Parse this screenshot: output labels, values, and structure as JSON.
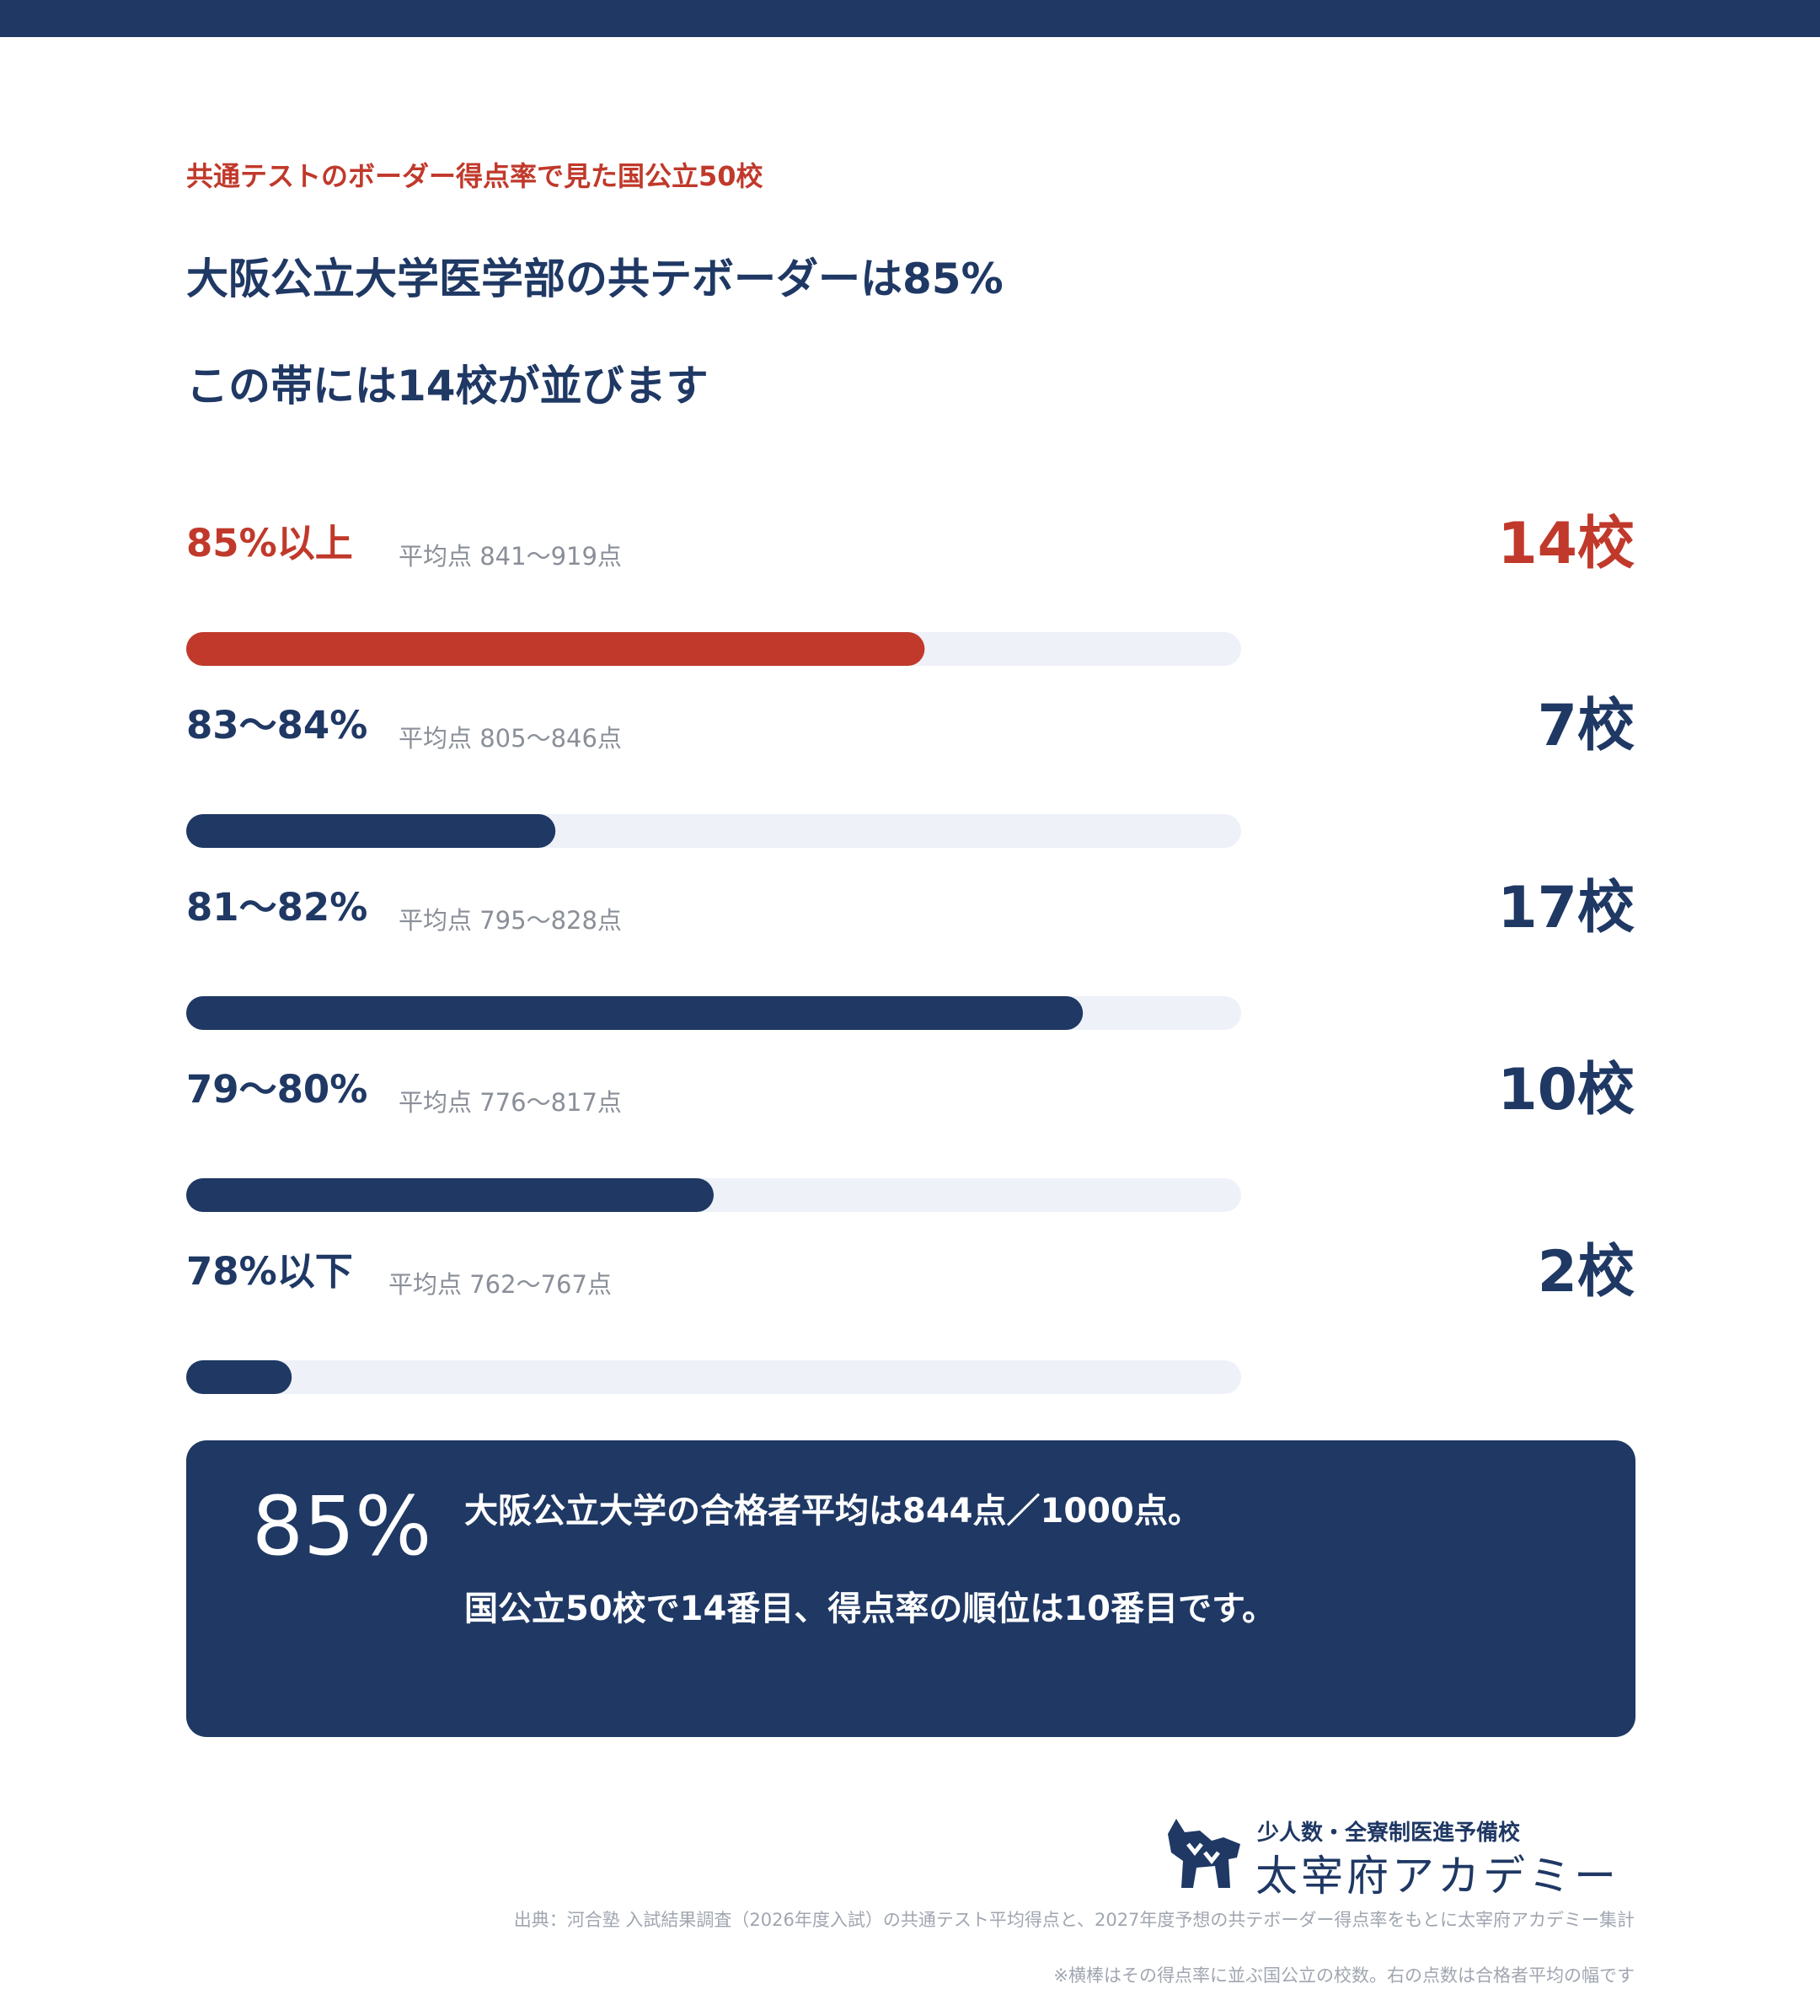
{
  "header": {
    "eyebrow": "共通テストのボーダー得点率で見た国公立50校",
    "title_line1": "大阪公立大学医学部の共テボーダーは85%",
    "title_line2": "この帯には14校が並びます"
  },
  "colors": {
    "navy": "#1f3864",
    "red": "#c0392b",
    "track": "#eef1f8",
    "muted": "#8a8f98"
  },
  "chart_data": {
    "type": "bar",
    "orientation": "horizontal",
    "categories": [
      "85%以上",
      "83〜84%",
      "81〜82%",
      "79〜80%",
      "78%以下"
    ],
    "subtitles": [
      "平均点 841〜919点",
      "平均点 805〜846点",
      "平均点 795〜828点",
      "平均点 776〜817点",
      "平均点 762〜767点"
    ],
    "values": [
      14,
      7,
      17,
      10,
      2
    ],
    "value_labels": [
      "14校",
      "7校",
      "17校",
      "10校",
      "2校"
    ],
    "highlight_index": 0,
    "xlim": [
      0,
      20
    ],
    "grid": false
  },
  "summary": {
    "big": "85%",
    "line1": "大阪公立大学の合格者平均は844点／1000点。",
    "line2": "国公立50校で14番目、得点率の順位は10番目です。"
  },
  "logo": {
    "tagline": "少人数・全寮制医進予備校",
    "name": "太宰府アカデミー",
    "icon": "dog-logo-icon"
  },
  "footer": {
    "source": "出典：河合塾 入試結果調査（2026年度入試）の共通テスト平均得点と、2027年度予想の共テボーダー得点率をもとに太宰府アカデミー集計",
    "note": "※横棒はその得点率に並ぶ国公立の校数。右の点数は合格者平均の幅です"
  }
}
